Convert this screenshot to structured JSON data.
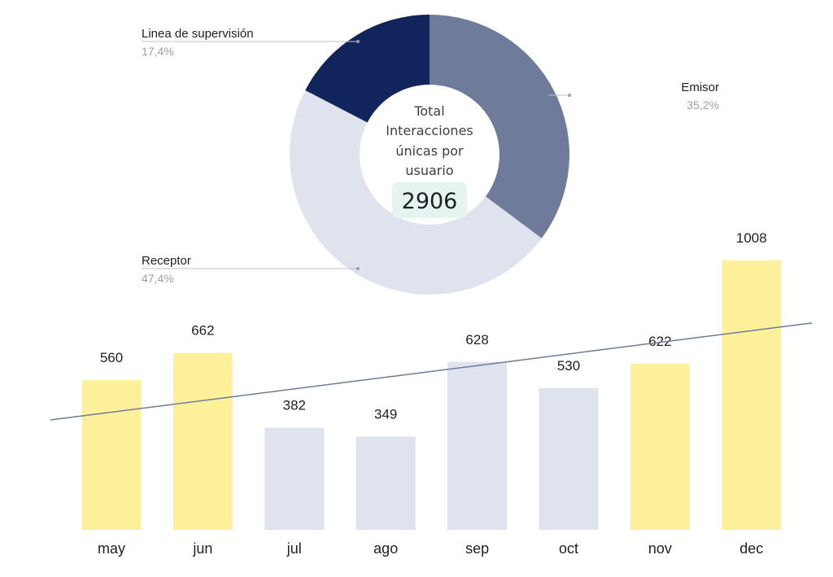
{
  "chart_data": [
    {
      "type": "pie",
      "center_label": [
        "Total",
        "Interacciones",
        "únicas por",
        "usuario"
      ],
      "center_total": "2906",
      "slices": [
        {
          "name": "Emisor",
          "value": 35.2,
          "label": "35,2%",
          "color": "#6e7b9a"
        },
        {
          "name": "Receptor",
          "value": 47.4,
          "label": "47,4%",
          "color": "#dfe3ee"
        },
        {
          "name": "Linea de supervisión",
          "value": 17.4,
          "label": "17,4%",
          "color": "#12245c"
        }
      ],
      "highlight_color": "#e6f4f1"
    },
    {
      "type": "bar",
      "categories": [
        "may",
        "jun",
        "jul",
        "ago",
        "sep",
        "oct",
        "nov",
        "dec"
      ],
      "values": [
        560,
        662,
        382,
        349,
        628,
        530,
        622,
        1008
      ],
      "value_labels": [
        "560",
        "662",
        "382",
        "349",
        "628",
        "530",
        "622",
        "1008"
      ],
      "bar_colors": [
        "#fdf09a",
        "#fdf09a",
        "#dfe3ee",
        "#dfe3ee",
        "#dfe3ee",
        "#dfe3ee",
        "#fdf09a",
        "#fdf09a"
      ],
      "trendline": true,
      "trendline_color": "#6e7b9a",
      "grid": false
    }
  ]
}
